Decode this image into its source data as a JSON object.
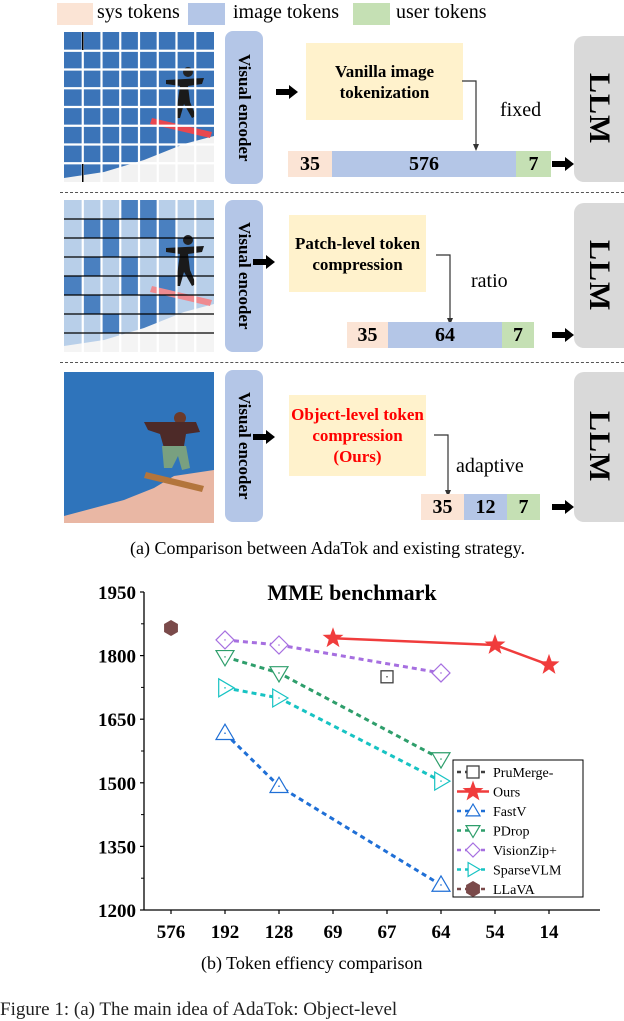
{
  "legend": {
    "items": [
      {
        "label": "sys tokens",
        "color": "#fbe4d5"
      },
      {
        "label": "image tokens",
        "color": "#b4c6e7"
      },
      {
        "label": "user tokens",
        "color": "#c5e0b4"
      }
    ]
  },
  "panel_a": {
    "rows": [
      {
        "encoder_label": "Visual encoder",
        "process_label_line1": "Vanilla image",
        "process_label_line2": "tokenization",
        "process_label_line3": "",
        "mode_label": "fixed",
        "tokens": {
          "sys": "35",
          "image": "576",
          "user": "7"
        },
        "llm_label": "LLM"
      },
      {
        "encoder_label": "Visual encoder",
        "process_label_line1": "Patch-level token",
        "process_label_line2": "compression",
        "process_label_line3": "",
        "mode_label": "ratio",
        "tokens": {
          "sys": "35",
          "image": "64",
          "user": "7"
        },
        "llm_label": "LLM"
      },
      {
        "encoder_label": "Visual encoder",
        "process_label_line1": "Object-level token",
        "process_label_line2": "compression",
        "process_label_line3": "(Ours)",
        "process_color": "#ff0000",
        "mode_label": "adaptive",
        "tokens": {
          "sys": "35",
          "image": "12",
          "user": "7"
        },
        "llm_label": "LLM"
      }
    ],
    "caption": "(a) Comparison between AdaTok and existing strategy."
  },
  "chart_data": {
    "type": "line",
    "title": "MME benchmark",
    "xlabel": "",
    "ylabel": "",
    "categories": [
      "576",
      "192",
      "128",
      "69",
      "67",
      "64",
      "54",
      "14"
    ],
    "yticks": [
      1200,
      1350,
      1500,
      1650,
      1800,
      1950
    ],
    "ylim": [
      1200,
      1950
    ],
    "grid": false,
    "legend_position": "lower right",
    "series": [
      {
        "name": "PruMerge-",
        "color": "#404040",
        "marker": "square",
        "dash": true,
        "points": [
          {
            "x": "67",
            "y": 1750
          }
        ]
      },
      {
        "name": "Ours",
        "color": "#f03c3c",
        "marker": "star",
        "dash": false,
        "points": [
          {
            "x": "69",
            "y": 1841
          },
          {
            "x": "54",
            "y": 1825
          },
          {
            "x": "14",
            "y": 1778
          }
        ]
      },
      {
        "name": "FastV",
        "color": "#1f6fd6",
        "marker": "triangle-up",
        "dash": true,
        "points": [
          {
            "x": "192",
            "y": 1617
          },
          {
            "x": "128",
            "y": 1492
          },
          {
            "x": "64",
            "y": 1259
          }
        ]
      },
      {
        "name": "PDrop",
        "color": "#2e9e6b",
        "marker": "triangle-down",
        "dash": true,
        "points": [
          {
            "x": "192",
            "y": 1797
          },
          {
            "x": "128",
            "y": 1759
          },
          {
            "x": "64",
            "y": 1556
          }
        ]
      },
      {
        "name": "VisionZip+",
        "color": "#a66fe0",
        "marker": "diamond",
        "dash": true,
        "points": [
          {
            "x": "192",
            "y": 1837
          },
          {
            "x": "128",
            "y": 1825
          },
          {
            "x": "64",
            "y": 1759
          }
        ]
      },
      {
        "name": "SparseVLM",
        "color": "#17c3c3",
        "marker": "triangle-right",
        "dash": true,
        "points": [
          {
            "x": "192",
            "y": 1724
          },
          {
            "x": "128",
            "y": 1700
          },
          {
            "x": "64",
            "y": 1504
          }
        ]
      },
      {
        "name": "LLaVA",
        "color": "#7a4a4a",
        "marker": "hexagon",
        "dash": true,
        "points": [
          {
            "x": "576",
            "y": 1865
          }
        ]
      }
    ],
    "caption": "(b) Token effiency comparison"
  },
  "figure_caption_partial": "Figure 1: (a) The main idea of AdaTok: Object-level"
}
